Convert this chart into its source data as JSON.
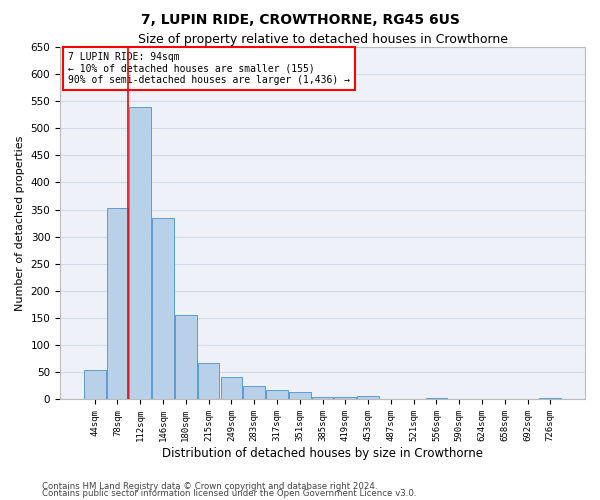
{
  "title": "7, LUPIN RIDE, CROWTHORNE, RG45 6US",
  "subtitle": "Size of property relative to detached houses in Crowthorne",
  "xlabel": "Distribution of detached houses by size in Crowthorne",
  "ylabel": "Number of detached properties",
  "categories": [
    "44sqm",
    "78sqm",
    "112sqm",
    "146sqm",
    "180sqm",
    "215sqm",
    "249sqm",
    "283sqm",
    "317sqm",
    "351sqm",
    "385sqm",
    "419sqm",
    "453sqm",
    "487sqm",
    "521sqm",
    "556sqm",
    "590sqm",
    "624sqm",
    "658sqm",
    "692sqm",
    "726sqm"
  ],
  "values": [
    55,
    352,
    538,
    335,
    155,
    67,
    42,
    24,
    18,
    13,
    5,
    5,
    7,
    0,
    0,
    3,
    0,
    0,
    0,
    0,
    2
  ],
  "bar_color": "#b8d0e8",
  "bar_edge_color": "#5b9bd5",
  "grid_color": "#d0daea",
  "bg_color": "#eef2f8",
  "annotation_line1": "7 LUPIN RIDE: 94sqm",
  "annotation_line2": "← 10% of detached houses are smaller (155)",
  "annotation_line3": "90% of semi-detached houses are larger (1,436) →",
  "footer1": "Contains HM Land Registry data © Crown copyright and database right 2024.",
  "footer2": "Contains public sector information licensed under the Open Government Licence v3.0.",
  "ylim": [
    0,
    650
  ],
  "yticks": [
    0,
    50,
    100,
    150,
    200,
    250,
    300,
    350,
    400,
    450,
    500,
    550,
    600,
    650
  ]
}
